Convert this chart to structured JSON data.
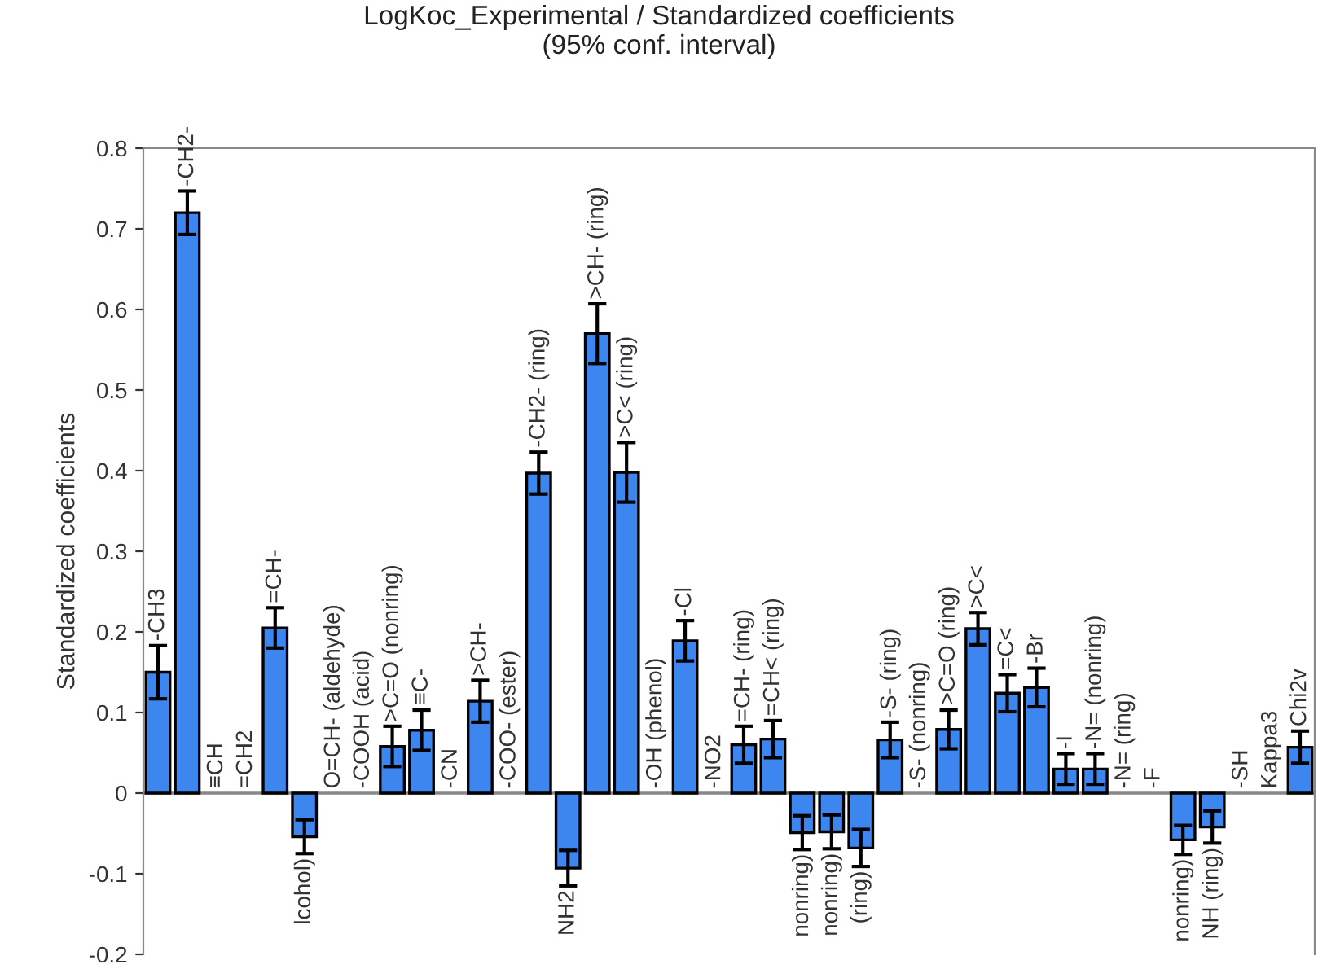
{
  "chart_data": {
    "type": "bar",
    "title": "LogKoc_Experimental / Standardized coefficients\n(95% conf. interval)",
    "ylabel": "Standardized coefficients",
    "categories": [
      "-CH3",
      "-CH2-",
      "≡CH",
      "=CH2",
      "=CH-",
      "lcohol)",
      "O=CH- (aldehyde)",
      "-COOH (acid)",
      ">C=O (nonring)",
      "≡C-",
      "-CN",
      ">CH-",
      "-COO- (ester)",
      "-CH2- (ring)",
      "NH2",
      ">CH- (ring)",
      ">C< (ring)",
      "-OH (phenol)",
      "-Cl",
      "-NO2",
      "=CH- (ring)",
      "=CH< (ring)",
      "nonring)",
      "nonring)",
      "(ring)",
      "-S- (ring)",
      "-S- (nonring)",
      ">C=O (ring)",
      ">C<",
      "=C<",
      "-Br",
      "-I",
      "-N= (nonring)",
      "-N= (ring)",
      "-F",
      "nonring)",
      "NH (ring)",
      "-SH",
      "Kappa3",
      "Chi2v"
    ],
    "values": [
      0.15,
      0.72,
      0,
      0,
      0.205,
      -0.054,
      0,
      0,
      0.058,
      0.078,
      0,
      0.114,
      0,
      0.397,
      -0.093,
      0.57,
      0.398,
      0,
      0.189,
      0,
      0.06,
      0.067,
      -0.049,
      -0.048,
      -0.068,
      0.066,
      0,
      0.079,
      0.204,
      0.124,
      0.131,
      0.03,
      0.03,
      0,
      0,
      -0.058,
      -0.042,
      0,
      0,
      0.057
    ],
    "errors": [
      0.033,
      0.027,
      null,
      null,
      0.025,
      0.021,
      null,
      null,
      0.025,
      0.025,
      null,
      0.026,
      null,
      0.026,
      0.022,
      0.037,
      0.037,
      null,
      0.025,
      null,
      0.023,
      0.023,
      0.021,
      0.021,
      0.023,
      0.022,
      null,
      0.024,
      0.02,
      0.023,
      0.024,
      0.019,
      0.019,
      null,
      null,
      0.018,
      0.02,
      null,
      null,
      0.02
    ],
    "color": "#3d85ef",
    "ylim": [
      -0.2,
      0.8
    ],
    "yticks": [
      -0.2,
      -0.1,
      0,
      0.1,
      0.2,
      0.3,
      0.4,
      0.5,
      0.6,
      0.7,
      0.8
    ],
    "grid": false
  }
}
